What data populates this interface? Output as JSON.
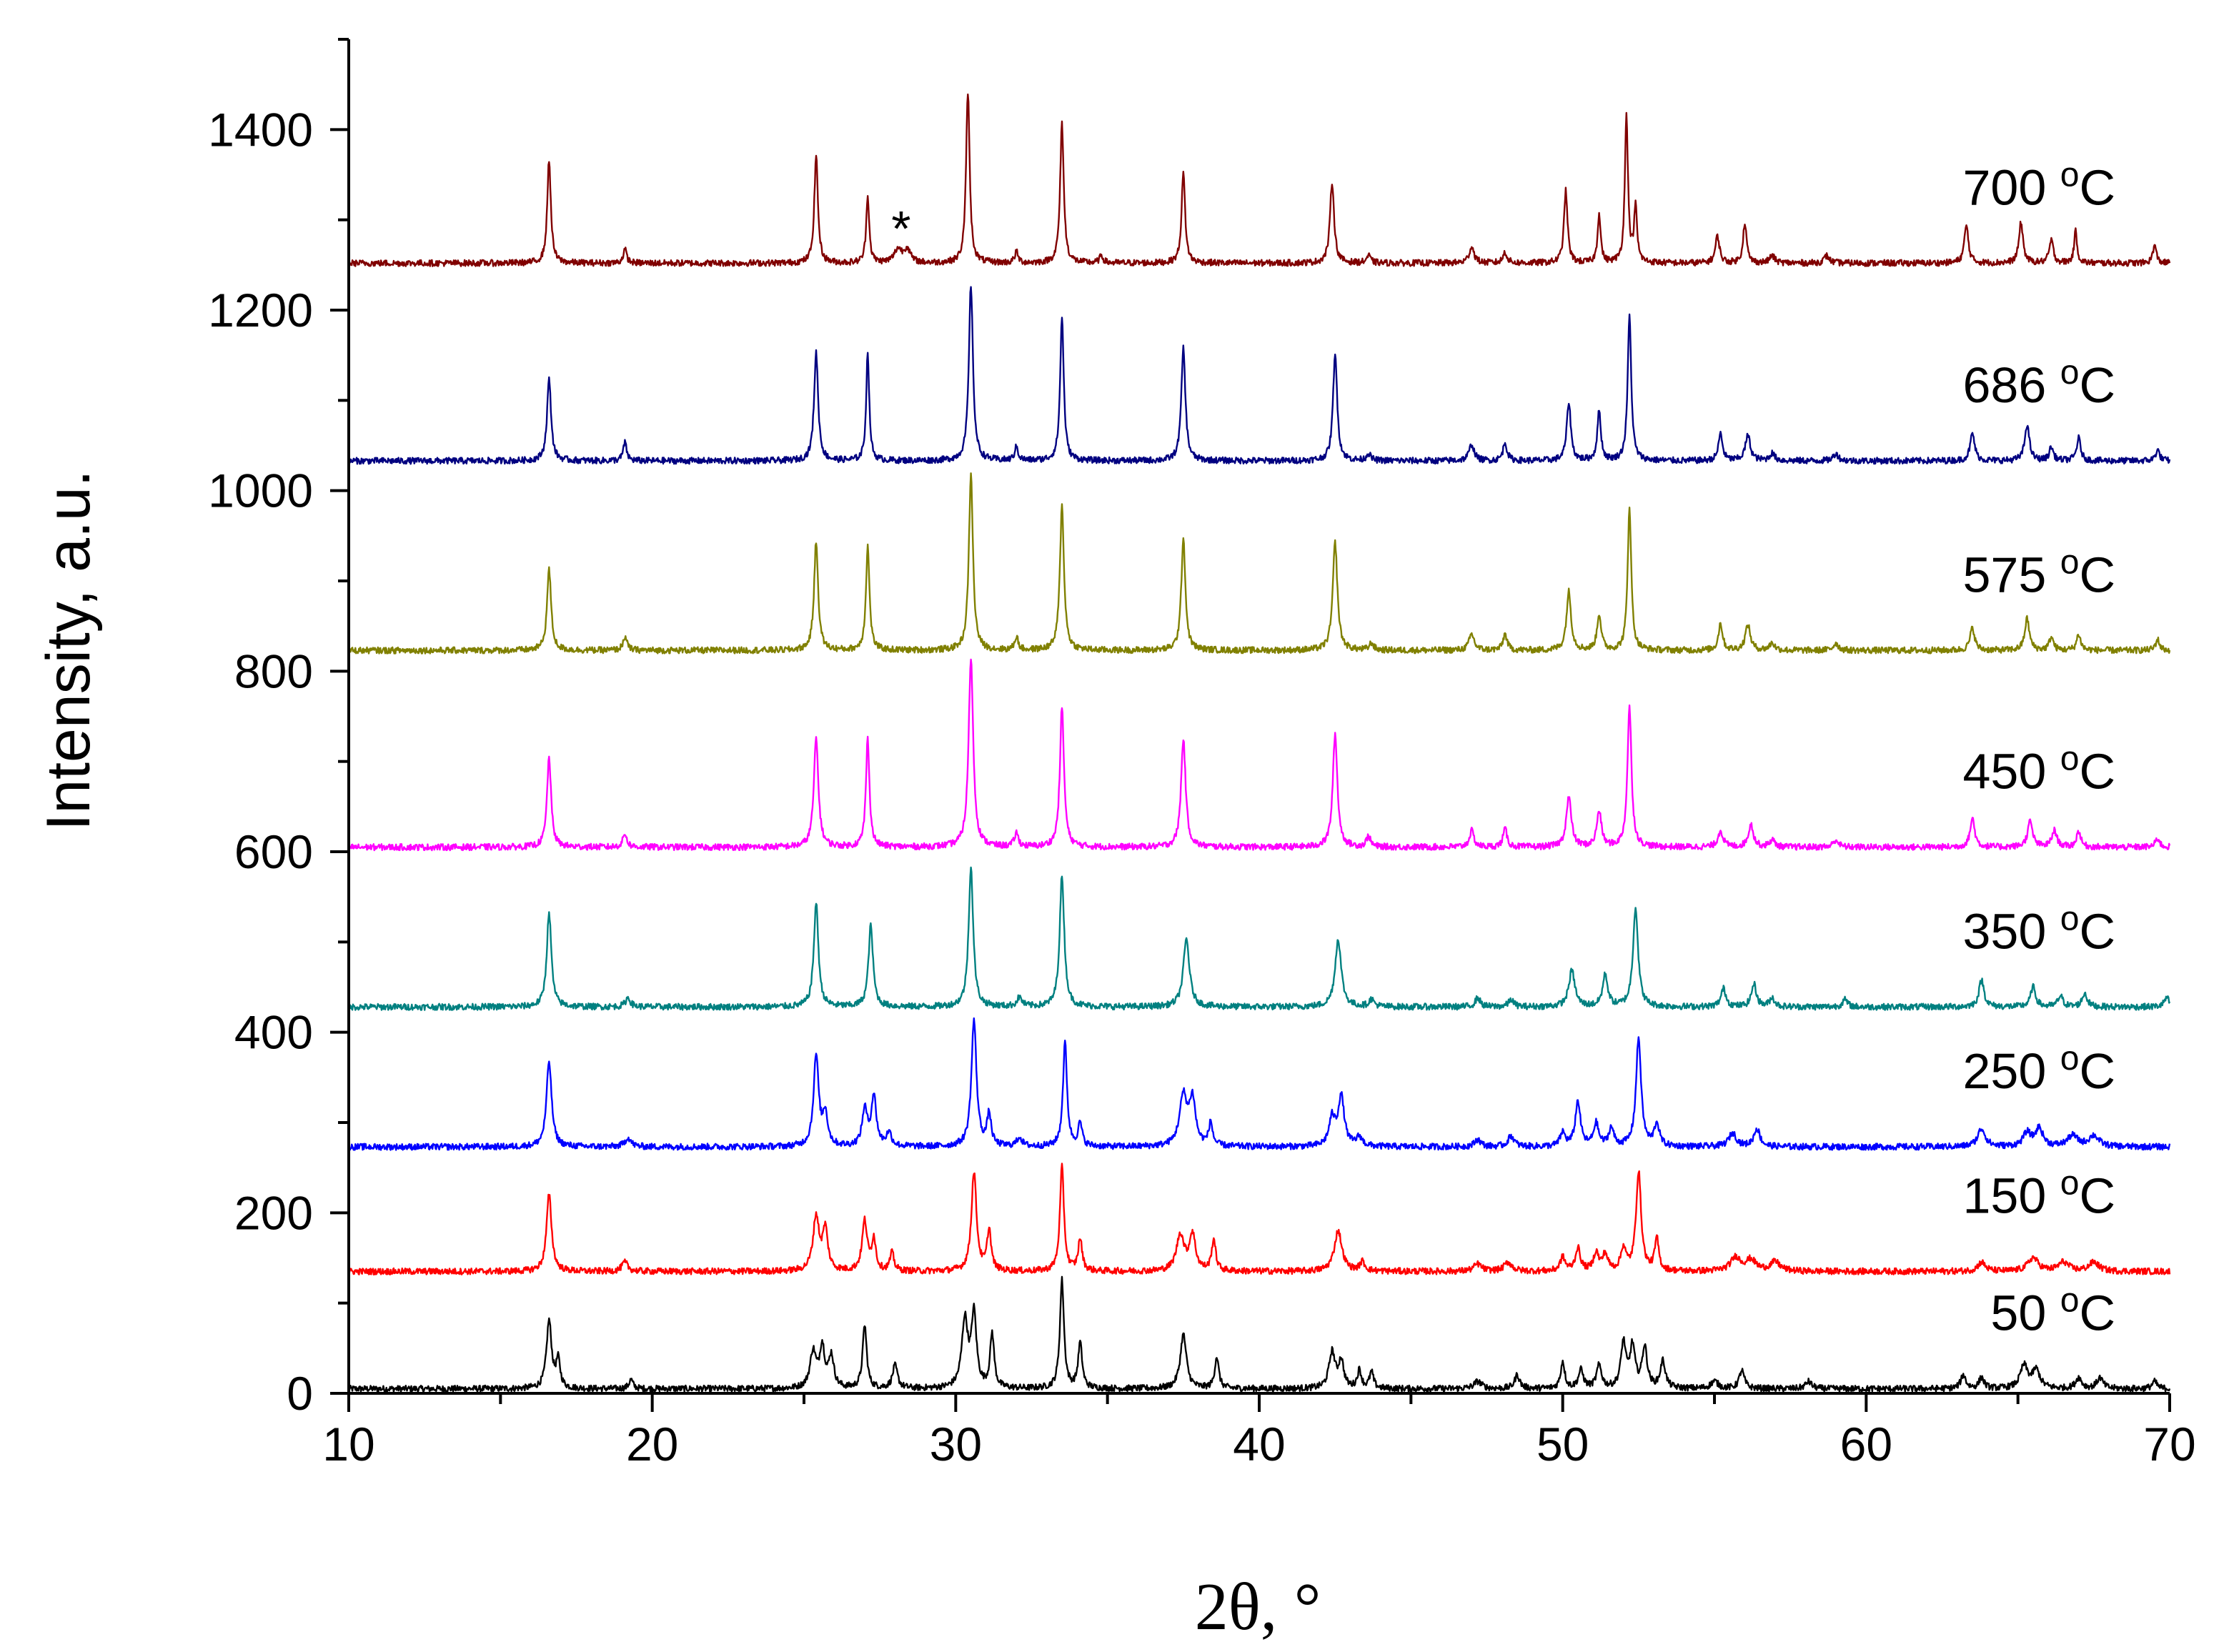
{
  "chart_data": {
    "type": "line",
    "title": "",
    "xlabel": "2θ, °",
    "ylabel": "Intensity, a.u.",
    "xlim": [
      10,
      70
    ],
    "ylim": [
      0,
      1500
    ],
    "x_ticks": [
      "10",
      "20",
      "30",
      "40",
      "50",
      "60",
      "70"
    ],
    "y_ticks": [
      "0",
      "200",
      "400",
      "600",
      "800",
      "1000",
      "1200",
      "1400"
    ],
    "grid": false,
    "legend": "labels placed at the right end of each trace",
    "annotations": [
      {
        "text": "*",
        "x": 28.2,
        "y": 1295
      }
    ],
    "series": [
      {
        "name": "50 °C",
        "color": "#000000",
        "baseline": 5,
        "peaks": [
          [
            16.6,
            75,
            0.1
          ],
          [
            16.9,
            30,
            0.08
          ],
          [
            19.3,
            10,
            0.08
          ],
          [
            25.3,
            40,
            0.12
          ],
          [
            25.6,
            45,
            0.1
          ],
          [
            25.9,
            35,
            0.1
          ],
          [
            27.0,
            70,
            0.08
          ],
          [
            28.0,
            25,
            0.1
          ],
          [
            30.3,
            75,
            0.12
          ],
          [
            30.6,
            80,
            0.1
          ],
          [
            31.2,
            60,
            0.08
          ],
          [
            33.5,
            120,
            0.08
          ],
          [
            34.1,
            50,
            0.08
          ],
          [
            37.5,
            60,
            0.12
          ],
          [
            38.6,
            35,
            0.08
          ],
          [
            42.4,
            40,
            0.12
          ],
          [
            42.7,
            30,
            0.1
          ],
          [
            43.3,
            20,
            0.08
          ],
          [
            43.7,
            18,
            0.08
          ],
          [
            47.2,
            8,
            0.15
          ],
          [
            48.5,
            15,
            0.1
          ],
          [
            50.0,
            30,
            0.08
          ],
          [
            50.6,
            20,
            0.1
          ],
          [
            51.2,
            25,
            0.1
          ],
          [
            52.0,
            50,
            0.1
          ],
          [
            52.3,
            45,
            0.1
          ],
          [
            52.7,
            45,
            0.1
          ],
          [
            53.3,
            30,
            0.1
          ],
          [
            55.0,
            8,
            0.15
          ],
          [
            55.9,
            20,
            0.1
          ],
          [
            58.1,
            8,
            0.12
          ],
          [
            63.2,
            15,
            0.1
          ],
          [
            63.8,
            12,
            0.1
          ],
          [
            65.2,
            25,
            0.15
          ],
          [
            65.6,
            20,
            0.15
          ],
          [
            67.0,
            12,
            0.12
          ],
          [
            67.7,
            12,
            0.12
          ],
          [
            69.5,
            8,
            0.1
          ]
        ]
      },
      {
        "name": "150 °C",
        "color": "#ff0000",
        "baseline": 135,
        "peaks": [
          [
            16.6,
            85,
            0.1
          ],
          [
            19.1,
            10,
            0.12
          ],
          [
            25.4,
            60,
            0.12
          ],
          [
            25.7,
            45,
            0.1
          ],
          [
            27.0,
            55,
            0.1
          ],
          [
            27.3,
            35,
            0.08
          ],
          [
            27.9,
            20,
            0.08
          ],
          [
            30.6,
            110,
            0.1
          ],
          [
            31.1,
            45,
            0.08
          ],
          [
            33.5,
            115,
            0.08
          ],
          [
            34.1,
            35,
            0.08
          ],
          [
            37.4,
            40,
            0.15
          ],
          [
            37.8,
            40,
            0.12
          ],
          [
            38.5,
            35,
            0.08
          ],
          [
            42.6,
            45,
            0.15
          ],
          [
            43.4,
            10,
            0.1
          ],
          [
            47.2,
            8,
            0.15
          ],
          [
            48.2,
            10,
            0.15
          ],
          [
            50.0,
            15,
            0.1
          ],
          [
            50.5,
            25,
            0.1
          ],
          [
            51.1,
            20,
            0.1
          ],
          [
            51.4,
            18,
            0.1
          ],
          [
            52.0,
            25,
            0.1
          ],
          [
            52.5,
            110,
            0.1
          ],
          [
            53.1,
            35,
            0.08
          ],
          [
            55.7,
            15,
            0.2
          ],
          [
            56.2,
            12,
            0.2
          ],
          [
            57.0,
            10,
            0.2
          ],
          [
            63.8,
            10,
            0.15
          ],
          [
            65.5,
            15,
            0.2
          ],
          [
            66.5,
            10,
            0.2
          ],
          [
            67.5,
            10,
            0.2
          ]
        ]
      },
      {
        "name": "250 °C",
        "color": "#0000ff",
        "baseline": 273,
        "peaks": [
          [
            16.6,
            95,
            0.1
          ],
          [
            19.2,
            10,
            0.12
          ],
          [
            25.4,
            100,
            0.1
          ],
          [
            25.7,
            35,
            0.1
          ],
          [
            27.0,
            40,
            0.1
          ],
          [
            27.3,
            55,
            0.1
          ],
          [
            27.8,
            15,
            0.1
          ],
          [
            30.6,
            140,
            0.1
          ],
          [
            31.1,
            35,
            0.08
          ],
          [
            32.1,
            10,
            0.1
          ],
          [
            33.6,
            115,
            0.08
          ],
          [
            34.1,
            25,
            0.08
          ],
          [
            37.5,
            55,
            0.15
          ],
          [
            37.8,
            50,
            0.12
          ],
          [
            38.4,
            25,
            0.08
          ],
          [
            42.4,
            30,
            0.12
          ],
          [
            42.7,
            55,
            0.12
          ],
          [
            43.3,
            10,
            0.12
          ],
          [
            47.2,
            8,
            0.12
          ],
          [
            48.3,
            12,
            0.12
          ],
          [
            50.0,
            15,
            0.1
          ],
          [
            50.5,
            50,
            0.1
          ],
          [
            51.1,
            25,
            0.1
          ],
          [
            51.6,
            20,
            0.1
          ],
          [
            52.5,
            120,
            0.1
          ],
          [
            53.1,
            25,
            0.1
          ],
          [
            55.6,
            15,
            0.15
          ],
          [
            56.4,
            20,
            0.12
          ],
          [
            63.8,
            20,
            0.15
          ],
          [
            65.3,
            15,
            0.15
          ],
          [
            65.7,
            20,
            0.15
          ],
          [
            66.8,
            12,
            0.2
          ],
          [
            67.5,
            12,
            0.2
          ]
        ]
      },
      {
        "name": "350 °C",
        "color": "#008080",
        "baseline": 428,
        "peaks": [
          [
            16.6,
            105,
            0.09
          ],
          [
            19.2,
            10,
            0.1
          ],
          [
            25.4,
            115,
            0.09
          ],
          [
            27.2,
            90,
            0.09
          ],
          [
            30.5,
            155,
            0.09
          ],
          [
            32.1,
            10,
            0.1
          ],
          [
            33.5,
            145,
            0.09
          ],
          [
            37.6,
            75,
            0.12
          ],
          [
            42.6,
            75,
            0.12
          ],
          [
            43.7,
            8,
            0.1
          ],
          [
            47.2,
            10,
            0.1
          ],
          [
            48.3,
            8,
            0.1
          ],
          [
            50.3,
            40,
            0.12
          ],
          [
            51.4,
            35,
            0.1
          ],
          [
            52.4,
            110,
            0.1
          ],
          [
            55.3,
            20,
            0.1
          ],
          [
            56.3,
            25,
            0.1
          ],
          [
            56.9,
            10,
            0.1
          ],
          [
            59.3,
            8,
            0.1
          ],
          [
            63.8,
            30,
            0.1
          ],
          [
            65.5,
            22,
            0.1
          ],
          [
            66.4,
            12,
            0.1
          ],
          [
            67.2,
            15,
            0.1
          ],
          [
            69.9,
            10,
            0.1
          ]
        ]
      },
      {
        "name": "450 °C",
        "color": "#ff00ff",
        "baseline": 605,
        "peaks": [
          [
            16.6,
            100,
            0.08
          ],
          [
            19.1,
            15,
            0.08
          ],
          [
            25.4,
            120,
            0.09
          ],
          [
            27.1,
            120,
            0.07
          ],
          [
            30.5,
            210,
            0.09
          ],
          [
            32.0,
            15,
            0.08
          ],
          [
            33.5,
            155,
            0.08
          ],
          [
            37.5,
            120,
            0.09
          ],
          [
            42.5,
            125,
            0.09
          ],
          [
            43.6,
            12,
            0.08
          ],
          [
            47.0,
            18,
            0.09
          ],
          [
            48.1,
            20,
            0.08
          ],
          [
            50.2,
            55,
            0.1
          ],
          [
            51.2,
            40,
            0.09
          ],
          [
            52.2,
            155,
            0.08
          ],
          [
            55.2,
            18,
            0.1
          ],
          [
            56.2,
            25,
            0.1
          ],
          [
            56.9,
            8,
            0.1
          ],
          [
            59.0,
            8,
            0.1
          ],
          [
            63.5,
            32,
            0.09
          ],
          [
            65.4,
            28,
            0.1
          ],
          [
            66.2,
            18,
            0.1
          ],
          [
            67.0,
            18,
            0.08
          ],
          [
            69.6,
            10,
            0.08
          ]
        ]
      },
      {
        "name": "575 °C",
        "color": "#808000",
        "baseline": 823,
        "peaks": [
          [
            16.6,
            90,
            0.08
          ],
          [
            19.1,
            15,
            0.08
          ],
          [
            25.4,
            120,
            0.08
          ],
          [
            27.1,
            115,
            0.07
          ],
          [
            30.5,
            195,
            0.08
          ],
          [
            32.0,
            15,
            0.07
          ],
          [
            33.5,
            160,
            0.08
          ],
          [
            37.5,
            125,
            0.08
          ],
          [
            42.5,
            120,
            0.09
          ],
          [
            43.7,
            8,
            0.08
          ],
          [
            47.0,
            18,
            0.1
          ],
          [
            48.1,
            18,
            0.08
          ],
          [
            50.2,
            65,
            0.09
          ],
          [
            51.2,
            40,
            0.08
          ],
          [
            52.2,
            160,
            0.07
          ],
          [
            55.2,
            30,
            0.08
          ],
          [
            56.1,
            28,
            0.1
          ],
          [
            56.9,
            8,
            0.1
          ],
          [
            59.0,
            8,
            0.1
          ],
          [
            63.5,
            25,
            0.09
          ],
          [
            65.3,
            35,
            0.09
          ],
          [
            66.1,
            15,
            0.08
          ],
          [
            67.0,
            18,
            0.08
          ],
          [
            69.6,
            12,
            0.08
          ]
        ]
      },
      {
        "name": "686 °C",
        "color": "#000080",
        "baseline": 1033,
        "peaks": [
          [
            16.6,
            90,
            0.08
          ],
          [
            19.1,
            20,
            0.07
          ],
          [
            25.4,
            120,
            0.08
          ],
          [
            27.1,
            120,
            0.06
          ],
          [
            30.5,
            195,
            0.08
          ],
          [
            32.0,
            15,
            0.07
          ],
          [
            33.5,
            160,
            0.07
          ],
          [
            37.5,
            125,
            0.08
          ],
          [
            42.5,
            120,
            0.08
          ],
          [
            43.6,
            8,
            0.08
          ],
          [
            47.0,
            18,
            0.1
          ],
          [
            48.1,
            20,
            0.08
          ],
          [
            50.2,
            65,
            0.08
          ],
          [
            51.2,
            55,
            0.07
          ],
          [
            52.2,
            160,
            0.07
          ],
          [
            55.2,
            30,
            0.08
          ],
          [
            56.1,
            28,
            0.1
          ],
          [
            56.9,
            8,
            0.1
          ],
          [
            59.0,
            8,
            0.1
          ],
          [
            63.5,
            30,
            0.09
          ],
          [
            65.3,
            40,
            0.09
          ],
          [
            66.1,
            15,
            0.08
          ],
          [
            67.0,
            25,
            0.08
          ],
          [
            69.6,
            12,
            0.08
          ]
        ]
      },
      {
        "name": "700 °C",
        "color": "#800000",
        "baseline": 1252,
        "peaks": [
          [
            16.6,
            115,
            0.07
          ],
          [
            19.1,
            15,
            0.07
          ],
          [
            25.4,
            120,
            0.07
          ],
          [
            27.1,
            75,
            0.06
          ],
          [
            28.1,
            15,
            0.15
          ],
          [
            28.4,
            15,
            0.12
          ],
          [
            30.4,
            190,
            0.07
          ],
          [
            32.0,
            12,
            0.07
          ],
          [
            33.5,
            155,
            0.07
          ],
          [
            34.8,
            8,
            0.07
          ],
          [
            37.5,
            100,
            0.07
          ],
          [
            42.4,
            90,
            0.08
          ],
          [
            43.6,
            8,
            0.08
          ],
          [
            47.0,
            18,
            0.1
          ],
          [
            48.1,
            12,
            0.08
          ],
          [
            50.1,
            80,
            0.07
          ],
          [
            51.2,
            55,
            0.06
          ],
          [
            52.1,
            165,
            0.06
          ],
          [
            52.4,
            60,
            0.06
          ],
          [
            55.1,
            30,
            0.08
          ],
          [
            56.0,
            45,
            0.07
          ],
          [
            56.9,
            8,
            0.1
          ],
          [
            58.7,
            8,
            0.1
          ],
          [
            63.3,
            42,
            0.08
          ],
          [
            65.1,
            45,
            0.08
          ],
          [
            66.1,
            25,
            0.08
          ],
          [
            66.9,
            35,
            0.06
          ],
          [
            69.5,
            20,
            0.07
          ]
        ]
      }
    ]
  }
}
